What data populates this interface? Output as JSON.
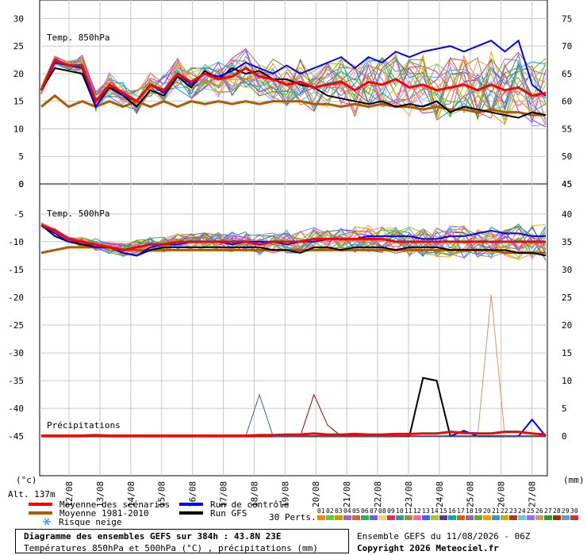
{
  "chart_data": [
    {
      "type": "line",
      "panel": "temp850",
      "title": "Temp. 850hPa",
      "ylim_left": [
        0,
        30
      ],
      "ylim_right": [
        45,
        75
      ],
      "left_ticks": [
        "30",
        "25",
        "20",
        "15",
        "10",
        "5",
        "0"
      ],
      "right_ticks": [
        "75",
        "70",
        "65",
        "60",
        "55",
        "50",
        "45"
      ],
      "grid": true,
      "series": [
        {
          "name": "Moyenne des scénarios",
          "color": "#ff0000",
          "values": [
            17,
            22.5,
            21.5,
            21.5,
            15,
            18,
            16.5,
            15,
            18,
            17,
            20,
            18.5,
            20,
            19,
            19.5,
            21,
            19.5,
            19,
            18,
            18.5,
            17.5,
            18,
            18.5,
            17,
            18.5,
            18,
            19,
            17.5,
            18,
            17,
            17.5,
            18,
            17,
            18,
            17,
            17.5,
            16,
            16.5
          ]
        },
        {
          "name": "Moyenne 1981-2010",
          "color": "#b35900",
          "values": [
            14,
            16,
            14,
            15,
            14,
            15,
            14,
            15,
            14,
            15,
            14,
            15,
            14.5,
            15,
            14.5,
            15,
            14.5,
            15,
            15,
            15,
            14.5,
            14.5,
            14,
            14.5,
            14,
            14.5,
            14,
            14,
            13.5,
            14,
            13.5,
            13.5,
            13,
            13.5,
            13,
            13,
            12.5,
            12.5
          ]
        },
        {
          "name": "Run de contrôle",
          "color": "#0000ff",
          "values": [
            17,
            22,
            21.5,
            21,
            14,
            18,
            16,
            15,
            18,
            16.5,
            20,
            18,
            20,
            19.5,
            20.5,
            22,
            21,
            20,
            21.5,
            20,
            21,
            22,
            23,
            21,
            23,
            22,
            24,
            23,
            24,
            24.5,
            25,
            24,
            25,
            26,
            24,
            26,
            18,
            16
          ]
        },
        {
          "name": "Run GFS",
          "color": "#000000",
          "values": [
            17,
            21,
            20.5,
            20,
            14,
            17.5,
            16,
            14,
            17,
            16,
            19.5,
            17.5,
            20.5,
            19,
            21,
            20,
            20.5,
            19,
            19,
            18,
            17.5,
            16,
            15.5,
            15,
            14.5,
            15,
            14,
            14.5,
            14,
            15,
            13,
            14,
            13.5,
            13,
            12.5,
            12,
            13,
            12.5
          ]
        }
      ]
    },
    {
      "type": "line",
      "panel": "temp500",
      "title": "Temp. 500hPa",
      "ylim_left": [
        -50,
        0
      ],
      "ylim_right": [
        -5,
        45
      ],
      "left_ticks": [
        "0",
        "-5",
        "-10",
        "-15",
        "-20",
        "-25",
        "-30",
        "-35",
        "-40",
        "-45"
      ],
      "right_ticks": [
        "45",
        "40",
        "35",
        "30",
        "25",
        "20",
        "15",
        "10",
        "5",
        "0"
      ],
      "grid": true,
      "series": [
        {
          "name": "Moyenne des scénarios",
          "color": "#ff0000",
          "values": [
            -7,
            -8,
            -9.5,
            -10,
            -10.5,
            -11,
            -11.5,
            -11,
            -10.5,
            -10.5,
            -10,
            -10,
            -10,
            -10,
            -10,
            -10,
            -10.5,
            -10,
            -10,
            -10,
            -9.5,
            -9.5,
            -9.5,
            -9.5,
            -9.5,
            -9.5,
            -10,
            -10,
            -10,
            -10,
            -10,
            -10,
            -10,
            -10,
            -10,
            -10,
            -10,
            -10
          ]
        },
        {
          "name": "Moyenne 1981-2010",
          "color": "#b35900",
          "values": [
            -12,
            -11.5,
            -11,
            -11,
            -11,
            -11,
            -11.5,
            -11.5,
            -11.5,
            -11.5,
            -11.5,
            -11.5,
            -11.5,
            -11.5,
            -11.5,
            -11.5,
            -11.5,
            -11.5,
            -11.5,
            -11.5,
            -11.5,
            -11.5,
            -11.5,
            -11.5,
            -11.5,
            -11.5,
            -11.5,
            -11.5,
            -11.5,
            -11.5,
            -11.5,
            -11.5,
            -11.5,
            -11.5,
            -12,
            -12,
            -12,
            -12
          ]
        },
        {
          "name": "Run de contrôle",
          "color": "#0000ff",
          "values": [
            -7,
            -8.5,
            -10,
            -10,
            -11,
            -11,
            -12,
            -12.5,
            -11,
            -10.5,
            -10.5,
            -10,
            -10,
            -10,
            -10.5,
            -10,
            -10,
            -10,
            -10.5,
            -10,
            -10,
            -9.5,
            -9.5,
            -9.5,
            -9,
            -9,
            -9,
            -9,
            -9.5,
            -9.5,
            -9,
            -9,
            -8.5,
            -8,
            -8.5,
            -8.5,
            -9,
            -9
          ]
        },
        {
          "name": "Run GFS",
          "color": "#000000",
          "values": [
            -7,
            -9,
            -10,
            -10.5,
            -11,
            -11,
            -12,
            -12.5,
            -11.5,
            -11,
            -11,
            -11,
            -11,
            -11,
            -11,
            -11,
            -11,
            -11.5,
            -11.5,
            -12,
            -11,
            -11,
            -11.5,
            -11,
            -11,
            -11,
            -11.5,
            -11,
            -11,
            -11,
            -11.5,
            -11.5,
            -11.5,
            -11.5,
            -11.5,
            -12,
            -12,
            -12.5
          ]
        }
      ]
    },
    {
      "type": "line",
      "panel": "precip",
      "title": "Précipitations",
      "ylim_mm": [
        0,
        45
      ],
      "series": [
        {
          "name": "Moyenne des scénarios",
          "color": "#ff0000",
          "values": [
            0.1,
            0.1,
            0.1,
            0.1,
            0.2,
            0.1,
            0.1,
            0.1,
            0.1,
            0.1,
            0.1,
            0.1,
            0.1,
            0.1,
            0.1,
            0.1,
            0.2,
            0.2,
            0.3,
            0.3,
            0.5,
            0.3,
            0.3,
            0.4,
            0.3,
            0.3,
            0.4,
            0.4,
            0.5,
            0.5,
            0.8,
            0.6,
            0.5,
            0.5,
            0.8,
            0.8,
            0.5,
            0.3
          ]
        },
        {
          "name": "Run de contrôle",
          "color": "#0000ff",
          "values": [
            0,
            0,
            0,
            0,
            0,
            0,
            0,
            0,
            0,
            0,
            0,
            0,
            0,
            0,
            0,
            0,
            0,
            0,
            0,
            0,
            0,
            0,
            0,
            0,
            0,
            0,
            0,
            0,
            0,
            0,
            0,
            1,
            0,
            0,
            0,
            0,
            3,
            0
          ]
        },
        {
          "name": "Run GFS",
          "color": "#000000",
          "values": [
            0,
            0,
            0,
            0,
            0,
            0,
            0,
            0,
            0,
            0,
            0,
            0,
            0,
            0,
            0,
            0,
            0,
            0,
            0,
            0,
            0,
            0,
            0,
            0,
            0,
            0,
            0,
            0,
            10.5,
            10,
            0,
            0,
            0,
            0,
            0,
            0,
            0,
            0
          ]
        },
        {
          "name": "member",
          "color": "#cc9966",
          "values": [
            0,
            0,
            0,
            0,
            0,
            0,
            0,
            0,
            0,
            0,
            0,
            0,
            0,
            0,
            0,
            0,
            0,
            0,
            0,
            0,
            0,
            0,
            0,
            0,
            0,
            0,
            0,
            0,
            0,
            0,
            0,
            0,
            0,
            25.5,
            0,
            0,
            0,
            0
          ]
        },
        {
          "name": "member",
          "color": "#aa0000",
          "values": [
            0,
            0,
            0,
            0,
            0,
            0,
            0,
            0,
            0,
            0,
            0,
            0,
            0,
            0,
            0,
            0,
            0,
            0,
            0,
            0,
            7.5,
            2,
            0,
            0,
            0,
            0,
            0,
            0,
            0,
            0,
            0,
            0,
            0,
            0,
            0,
            0,
            0,
            0
          ]
        },
        {
          "name": "member",
          "color": "#336699",
          "values": [
            0,
            0,
            0,
            0,
            0,
            0,
            0,
            0,
            0,
            0,
            0,
            0,
            0,
            0,
            0,
            0,
            7.5,
            0,
            0,
            0,
            0,
            0,
            0,
            0,
            0,
            0,
            0,
            0,
            0,
            0,
            0,
            0,
            0,
            0,
            0,
            0,
            0,
            0
          ]
        }
      ]
    }
  ],
  "members": {
    "colors": [
      "#ffa500",
      "#33cc33",
      "#9933cc",
      "#66aaff",
      "#996633",
      "#ff66ff",
      "#00aa88",
      "#cccc00",
      "#ff3333",
      "#3366cc",
      "#99cc00",
      "#cc6699",
      "#0099cc",
      "#aa7744",
      "#66cc99",
      "#cc33cc",
      "#88aa22",
      "#3399ff",
      "#ff9966",
      "#669900",
      "#aa66ff",
      "#dd9922"
    ]
  },
  "x_axis": {
    "dates": [
      "12/08",
      "13/08",
      "14/08",
      "15/08",
      "16/08",
      "17/08",
      "18/08",
      "19/08",
      "20/08",
      "21/08",
      "22/08",
      "23/08",
      "24/08",
      "25/08",
      "26/08",
      "27/08"
    ]
  },
  "labels": {
    "unit_left": "(°c)",
    "unit_right": "(mm)",
    "altitude": "Alt. 137m",
    "perts": "30 Perts."
  },
  "legend": {
    "items": [
      {
        "label": "Moyenne des scénarios",
        "color": "#ff0000"
      },
      {
        "label": "Moyenne 1981-2010",
        "color": "#b35900"
      },
      {
        "label": "Run de contrôle",
        "color": "#0000ff"
      },
      {
        "label": "Run GFS",
        "color": "#000000"
      }
    ],
    "snow": "Risque neige",
    "perturbation_numbers": [
      "01",
      "02",
      "03",
      "04",
      "05",
      "06",
      "07",
      "08",
      "09",
      "10",
      "11",
      "12",
      "13",
      "14",
      "15",
      "16",
      "17",
      "18",
      "19",
      "20",
      "21",
      "22",
      "23",
      "24",
      "25",
      "26",
      "27",
      "28",
      "29",
      "30"
    ],
    "perturbation_colors": [
      "#ff8800",
      "#66cc33",
      "#cc9900",
      "#9966cc",
      "#cc6633",
      "#33aa66",
      "#6666cc",
      "#ffcc66",
      "#cc3366",
      "#339999",
      "#aa8844",
      "#ff6699",
      "#3366ff",
      "#99cc33",
      "#663399",
      "#00aaaa",
      "#cc6600",
      "#996699",
      "#66aa33",
      "#ff9900",
      "#3399cc",
      "#ccaa00",
      "#aa3333",
      "#66cccc",
      "#9966ff",
      "#cc9966",
      "#339933",
      "#993300",
      "#6699cc",
      "#cc3333"
    ]
  },
  "footer": {
    "title": "Diagramme des ensembles GEFS sur 384h : 43.8N 23E",
    "subtitle": "Températures 850hPa et 500hPa (°C) , précipitations (mm)",
    "run": "Ensemble GEFS du 11/08/2026 - 06Z",
    "copyright": "Copyright 2026 Meteociel.fr"
  }
}
